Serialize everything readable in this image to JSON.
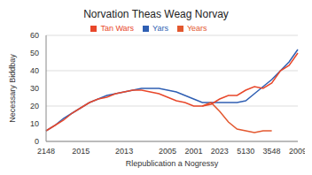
{
  "chart_data": {
    "type": "line",
    "title": "Norvation Theas Weag Norvay",
    "x_label": "Rlepublication a Nogressy",
    "y_label": "Necessary Biddbay",
    "categories": [
      "2148",
      null,
      null,
      null,
      "2015",
      null,
      null,
      null,
      null,
      "2013",
      null,
      null,
      null,
      null,
      "2005",
      null,
      null,
      "2001",
      null,
      null,
      "2023",
      null,
      null,
      "5130",
      null,
      null,
      "3548",
      null,
      null,
      "2009"
    ],
    "series": [
      {
        "name": "Yars",
        "color": "#2f5fb3",
        "values": [
          6,
          9,
          13,
          16,
          19,
          22,
          24,
          26,
          27,
          28,
          29,
          30,
          30,
          30,
          29,
          28,
          26,
          24,
          22,
          22,
          22,
          22,
          22,
          23,
          27,
          31,
          35,
          40,
          45,
          52
        ]
      },
      {
        "name": "Years",
        "color": "#e3582f",
        "values": [
          null,
          null,
          null,
          null,
          null,
          null,
          null,
          null,
          null,
          null,
          null,
          null,
          null,
          null,
          null,
          null,
          null,
          null,
          20,
          22,
          17,
          11,
          7,
          6,
          5,
          6,
          6,
          null,
          null,
          null
        ]
      },
      {
        "name": "Tan Wars",
        "color": "#e8472a",
        "values": [
          6,
          9,
          12,
          16,
          19,
          22,
          24,
          25,
          27,
          28,
          29,
          29,
          28,
          27,
          25,
          23,
          22,
          20,
          20,
          21,
          24,
          26,
          26,
          29,
          31,
          30,
          33,
          40,
          43,
          50
        ]
      }
    ],
    "ylim": [
      0,
      60
    ],
    "yticks": [
      0,
      10,
      20,
      30,
      40,
      50,
      60
    ],
    "grid": true,
    "legend": "top"
  }
}
